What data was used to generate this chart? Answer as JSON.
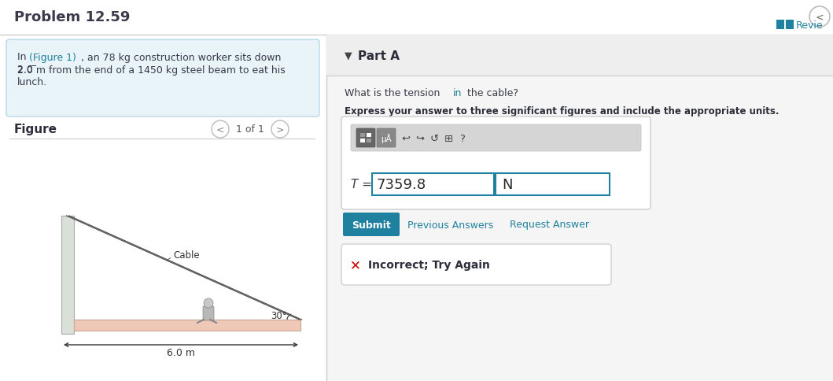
{
  "title": "Problem 12.59",
  "bg_color": "#ffffff",
  "left_panel_bg": "#ffffff",
  "right_panel_bg": "#f5f5f5",
  "problem_box_bg": "#e8f4f8",
  "problem_box_border": "#b8d8e8",
  "figure_label": "Figure",
  "figure_nav": "1 of 1",
  "part_a_label": "Part A",
  "question_normal1": "What is the tension ",
  "question_blue": "in",
  "question_normal2": " the cable?",
  "bold_text": "Express your answer to three significant figures and include the appropriate units.",
  "T_value": "7359.8",
  "T_unit": "N",
  "submit_text": "Submit",
  "prev_answers": "Previous Answers",
  "request_answer": "Request Answer",
  "incorrect_text": "Incorrect; Try Again",
  "review_text": "Revie",
  "cable_label": "Cable",
  "angle_label": "30°",
  "beam_length_label": "6.0 m",
  "beam_color": "#f0c8b8",
  "wall_color": "#d8e0d8",
  "cable_color": "#505050",
  "submit_btn_color": "#2080a0",
  "teal_color": "#2080a0",
  "link_color": "#2080a0",
  "incorrect_x_color": "#cc0000",
  "input_border": "#2080a0",
  "header_divider_color": "#cccccc",
  "part_a_bg": "#eeeeee",
  "toolbar_bg": "#d5d5d5",
  "dark_btn_color": "#666666",
  "mid_btn_color": "#888888"
}
